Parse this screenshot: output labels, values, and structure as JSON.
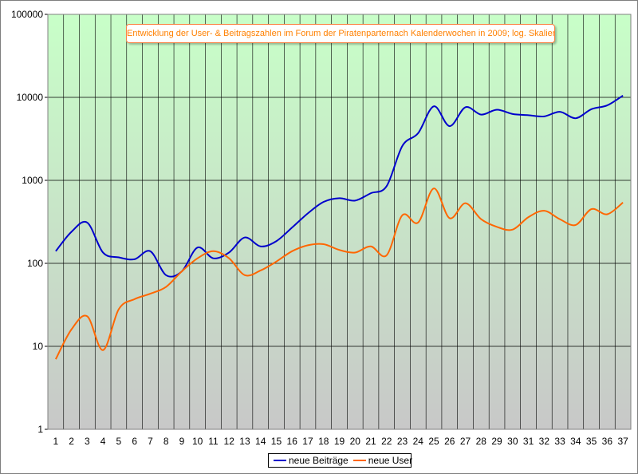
{
  "chart_data": {
    "type": "line",
    "title": "Entwicklung der User- & Beitragszahlen im Forum der Piratenparternach Kalenderwochen in 2009; log. Skalierung",
    "xlabel": "",
    "ylabel": "",
    "y_scale": "log",
    "ylim": [
      1,
      100000
    ],
    "y_ticks": [
      "1",
      "10",
      "100",
      "1000",
      "10000",
      "100000"
    ],
    "y_tick_values": [
      1,
      10,
      100,
      1000,
      10000,
      100000
    ],
    "x": [
      1,
      2,
      3,
      4,
      5,
      6,
      7,
      8,
      9,
      10,
      11,
      12,
      13,
      14,
      15,
      16,
      17,
      18,
      19,
      20,
      21,
      22,
      23,
      24,
      25,
      26,
      27,
      28,
      29,
      30,
      31,
      32,
      33,
      34,
      35,
      36,
      37
    ],
    "x_tick_labels": [
      "1",
      "2",
      "3",
      "4",
      "5",
      "6",
      "7",
      "8",
      "9",
      "10",
      "11",
      "12",
      "13",
      "14",
      "15",
      "16",
      "17",
      "18",
      "19",
      "20",
      "21",
      "22",
      "23",
      "24",
      "25",
      "26",
      "27",
      "28",
      "29",
      "30",
      "31",
      "32",
      "33",
      "34",
      "35",
      "36",
      "37"
    ],
    "grid": true,
    "legend_position": "bottom",
    "background_gradient": [
      "#c8ffc8",
      "#c8c8c8"
    ],
    "series": [
      {
        "name": "neue Beiträge",
        "color": "#0000cc",
        "values": [
          140,
          240,
          310,
          135,
          118,
          112,
          140,
          72,
          80,
          155,
          115,
          135,
          205,
          160,
          185,
          270,
          400,
          550,
          610,
          570,
          700,
          850,
          2600,
          3700,
          7800,
          4500,
          7600,
          6200,
          7100,
          6300,
          6100,
          5900,
          6700,
          5600,
          7200,
          8000,
          10500
        ]
      },
      {
        "name": "neue User",
        "color": "#ff6600",
        "values": [
          7,
          16,
          23,
          9,
          28,
          37,
          43,
          52,
          80,
          115,
          140,
          115,
          72,
          82,
          105,
          140,
          165,
          170,
          145,
          135,
          160,
          125,
          380,
          310,
          800,
          350,
          530,
          340,
          275,
          255,
          360,
          430,
          340,
          290,
          450,
          390,
          540
        ]
      }
    ]
  }
}
